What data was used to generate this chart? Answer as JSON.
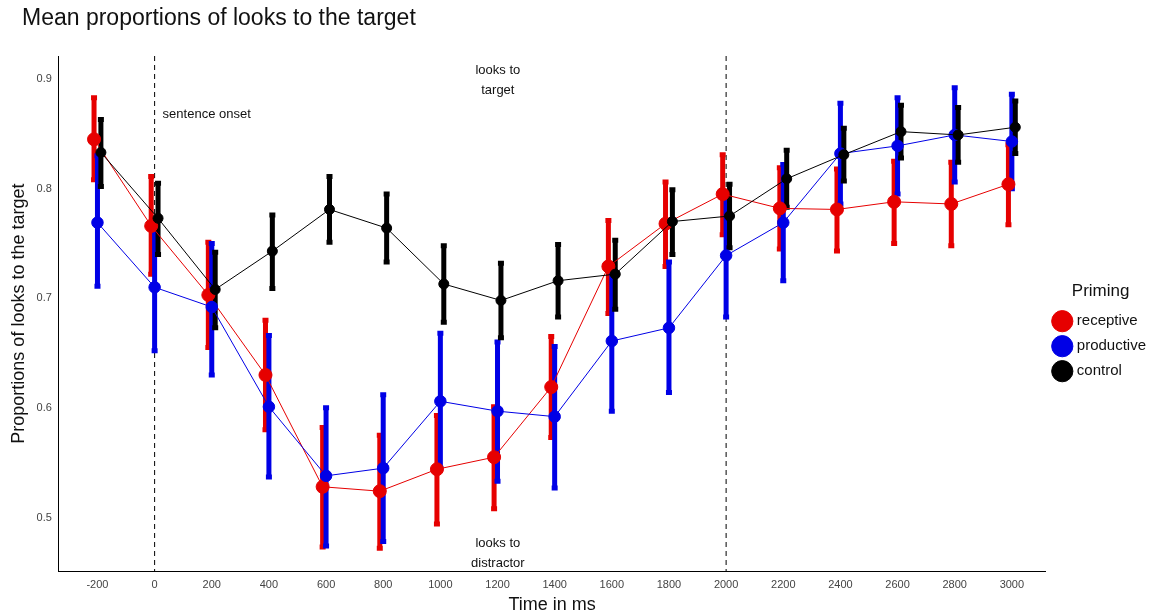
{
  "chart_data": {
    "type": "line",
    "title": "Mean proportions of looks to the target",
    "xlabel": "Time in ms",
    "ylabel": "Proportions of looks to the target",
    "legend_title": "Priming",
    "legend": "right",
    "grid": false,
    "marker": "circle",
    "line_style": "solid",
    "x": [
      -200,
      0,
      200,
      400,
      600,
      800,
      1000,
      1200,
      1400,
      1600,
      1800,
      2000,
      2200,
      2400,
      2600,
      2800,
      3000
    ],
    "xlim": [
      -335,
      3117
    ],
    "xticks": [
      -200,
      0,
      200,
      400,
      600,
      800,
      1000,
      1200,
      1400,
      1600,
      1800,
      2000,
      2200,
      2400,
      2600,
      2800,
      3000
    ],
    "ylim": [
      0.451,
      0.921
    ],
    "yticks": [
      0.5,
      0.6,
      0.7,
      0.8,
      0.9
    ],
    "series": [
      {
        "name": "receptive",
        "color": "#e60000",
        "x": [
          -212,
          -12,
          188,
          388,
          588,
          788,
          988,
          1188,
          1388,
          1588,
          1788,
          1988,
          2188,
          2388,
          2588,
          2788,
          2988
        ],
        "values": [
          0.845,
          0.766,
          0.703,
          0.63,
          0.528,
          0.524,
          0.544,
          0.555,
          0.619,
          0.729,
          0.768,
          0.795,
          0.782,
          0.781,
          0.788,
          0.786,
          0.804
        ],
        "errors": [
          [
            0.808,
            0.883
          ],
          [
            0.722,
            0.811
          ],
          [
            0.655,
            0.751
          ],
          [
            0.58,
            0.68
          ],
          [
            0.473,
            0.582
          ],
          [
            0.472,
            0.575
          ],
          [
            0.494,
            0.593
          ],
          [
            0.508,
            0.601
          ],
          [
            0.573,
            0.665
          ],
          [
            0.686,
            0.771
          ],
          [
            0.729,
            0.806
          ],
          [
            0.758,
            0.831
          ],
          [
            0.745,
            0.819
          ],
          [
            0.743,
            0.818
          ],
          [
            0.75,
            0.825
          ],
          [
            0.748,
            0.824
          ],
          [
            0.767,
            0.84
          ]
        ]
      },
      {
        "name": "productive",
        "color": "#0000e6",
        "values": [
          0.769,
          0.71,
          0.692,
          0.601,
          0.538,
          0.545,
          0.606,
          0.597,
          0.592,
          0.661,
          0.673,
          0.739,
          0.769,
          0.832,
          0.839,
          0.849,
          0.843
        ],
        "errors": [
          [
            0.711,
            0.83
          ],
          [
            0.652,
            0.768
          ],
          [
            0.63,
            0.75
          ],
          [
            0.537,
            0.666
          ],
          [
            0.474,
            0.6
          ],
          [
            0.478,
            0.612
          ],
          [
            0.545,
            0.668
          ],
          [
            0.533,
            0.66
          ],
          [
            0.527,
            0.656
          ],
          [
            0.597,
            0.726
          ],
          [
            0.614,
            0.733
          ],
          [
            0.683,
            0.795
          ],
          [
            0.716,
            0.822
          ],
          [
            0.786,
            0.878
          ],
          [
            0.795,
            0.883
          ],
          [
            0.806,
            0.892
          ],
          [
            0.8,
            0.886
          ]
        ]
      },
      {
        "name": "control",
        "color": "#000000",
        "x": [
          -188,
          12,
          212,
          412,
          612,
          812,
          1012,
          1212,
          1412,
          1612,
          1812,
          2012,
          2212,
          2412,
          2612,
          2812,
          3012
        ],
        "values": [
          0.833,
          0.773,
          0.708,
          0.743,
          0.781,
          0.764,
          0.713,
          0.698,
          0.716,
          0.722,
          0.77,
          0.775,
          0.809,
          0.831,
          0.852,
          0.849,
          0.856
        ],
        "errors": [
          [
            0.802,
            0.863
          ],
          [
            0.74,
            0.805
          ],
          [
            0.673,
            0.742
          ],
          [
            0.709,
            0.776
          ],
          [
            0.751,
            0.811
          ],
          [
            0.733,
            0.795
          ],
          [
            0.678,
            0.748
          ],
          [
            0.664,
            0.732
          ],
          [
            0.683,
            0.749
          ],
          [
            0.69,
            0.753
          ],
          [
            0.74,
            0.799
          ],
          [
            0.746,
            0.804
          ],
          [
            0.783,
            0.835
          ],
          [
            0.807,
            0.855
          ],
          [
            0.828,
            0.876
          ],
          [
            0.824,
            0.874
          ],
          [
            0.832,
            0.88
          ]
        ]
      }
    ],
    "ref_lines": [
      {
        "axis": "x",
        "value": 0,
        "label": "sentence onset",
        "line_style": "dashed",
        "color": "#000000"
      },
      {
        "axis": "x",
        "value": 2000,
        "line_style": "dashed",
        "color": "#000000"
      }
    ],
    "annotations": [
      "looks to target",
      "looks to distractor"
    ]
  }
}
